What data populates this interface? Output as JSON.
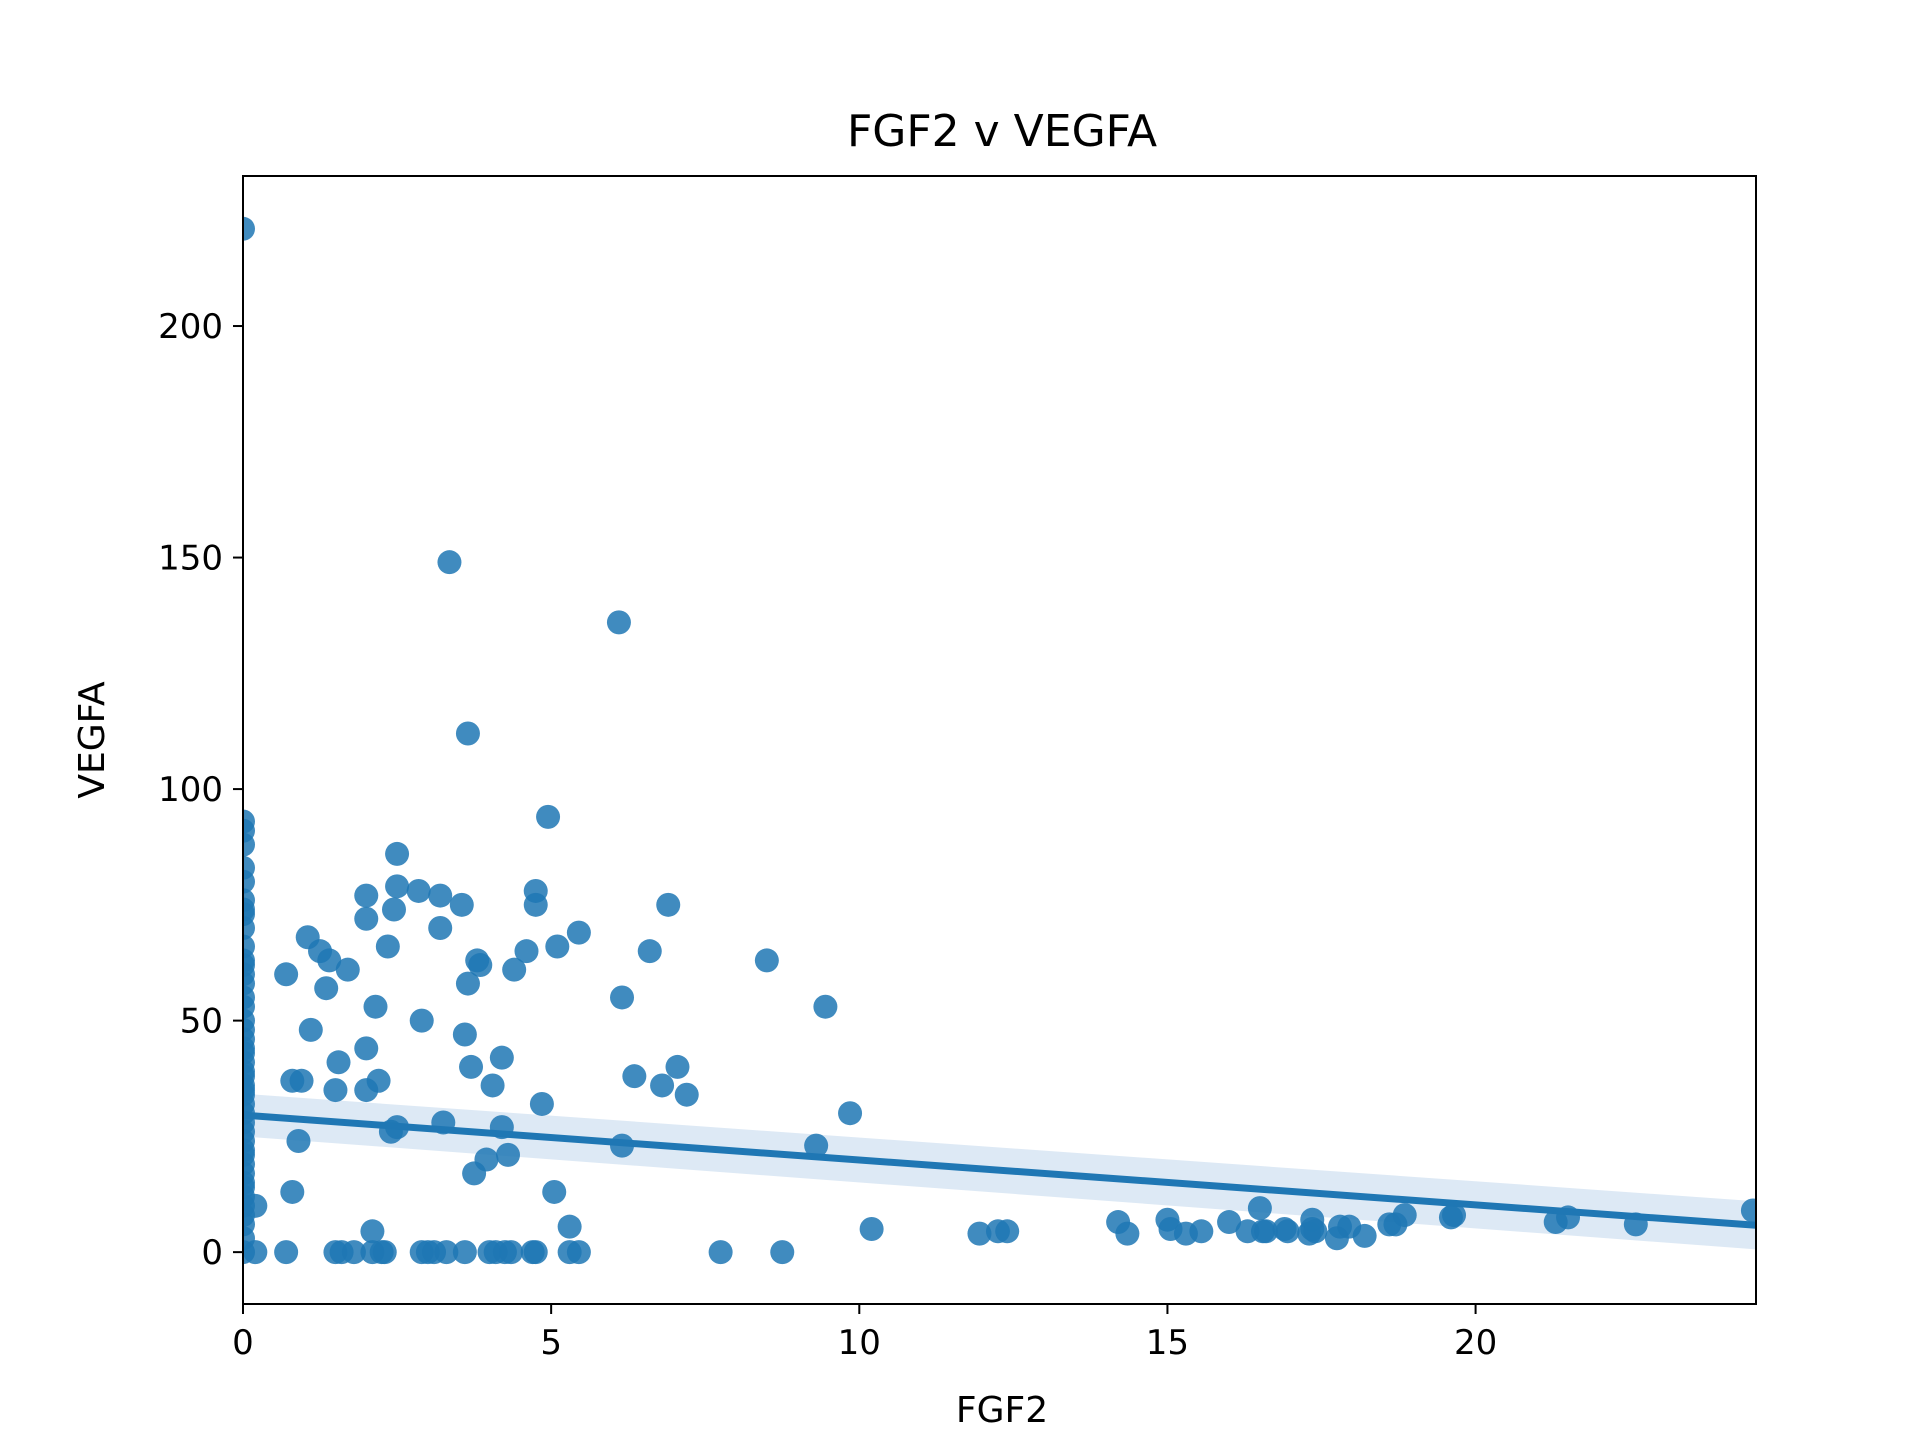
{
  "chart_data": {
    "type": "scatter",
    "title": "FGF2 v VEGFA",
    "xlabel": "FGF2",
    "ylabel": "VEGFA",
    "xlim": [
      0,
      24.55
    ],
    "ylim": [
      -11.2,
      232.4
    ],
    "xticks": [
      0,
      5,
      10,
      15,
      20
    ],
    "yticks": [
      0,
      50,
      100,
      150,
      200
    ],
    "grid": false,
    "legend": "none",
    "colors": {
      "points": "#1f77b4",
      "line": "#1f77b4",
      "band": "#c6dbef"
    },
    "regression": {
      "x": [
        0,
        24.55
      ],
      "y": [
        29.6,
        5.8
      ],
      "ci_halfwidth_start": 4.6,
      "ci_halfwidth_end": 5.2
    },
    "points": {
      "x": [
        0,
        0,
        0,
        0,
        0,
        0,
        0,
        0,
        0,
        0,
        0,
        0,
        0,
        0,
        0,
        0,
        0,
        0,
        0,
        0,
        0,
        0,
        0,
        0,
        0,
        0,
        0,
        0,
        0,
        0,
        0,
        0,
        0,
        0,
        0,
        0,
        0,
        0,
        0,
        0,
        0,
        0,
        0,
        0,
        0,
        0.2,
        0.2,
        0.7,
        0.7,
        0.8,
        0.8,
        0.9,
        0.95,
        1.05,
        1.1,
        1.25,
        1.35,
        1.4,
        1.5,
        1.55,
        1.7,
        1.5,
        1.6,
        1.8,
        2.0,
        2.0,
        2.0,
        2.0,
        2.1,
        2.1,
        2.15,
        2.2,
        2.25,
        2.35,
        2.4,
        2.45,
        2.5,
        2.5,
        2.5,
        2.3,
        2.85,
        2.9,
        2.9,
        3.0,
        3.1,
        3.2,
        3.2,
        3.25,
        3.3,
        3.35,
        3.55,
        3.6,
        3.6,
        3.65,
        3.65,
        3.7,
        3.75,
        3.8,
        3.85,
        3.95,
        4.0,
        4.05,
        4.1,
        4.2,
        4.2,
        4.25,
        4.3,
        4.35,
        4.4,
        4.6,
        4.7,
        4.75,
        4.75,
        4.75,
        4.85,
        4.95,
        5.05,
        5.1,
        5.3,
        5.3,
        5.45,
        5.45,
        6.1,
        6.15,
        6.15,
        6.35,
        6.6,
        6.8,
        6.9,
        7.05,
        7.2,
        7.75,
        8.5,
        8.75,
        9.3,
        9.45,
        9.85,
        10.2,
        11.95,
        12.25,
        12.4,
        14.2,
        14.35,
        15.0,
        15.05,
        15.3,
        15.55,
        16.0,
        16.3,
        16.5,
        16.55,
        16.6,
        16.9,
        16.95,
        17.3,
        17.35,
        17.35,
        17.4,
        17.75,
        17.8,
        17.95,
        18.2,
        18.6,
        18.7,
        18.85,
        19.6,
        19.65,
        21.3,
        21.5,
        22.6,
        24.5
      ],
      "y": [
        221,
        93,
        91,
        83,
        80,
        76,
        74,
        73,
        66,
        62,
        58,
        55,
        53,
        50,
        48,
        46,
        43,
        41,
        38,
        36,
        34,
        32,
        30,
        28,
        26,
        24,
        22,
        19,
        17,
        14,
        12,
        10,
        8,
        6,
        3,
        0,
        88,
        70,
        63,
        60,
        44,
        39,
        35,
        21,
        15,
        10,
        0,
        60,
        0,
        37,
        13,
        24,
        37,
        68,
        48,
        65,
        57,
        63,
        35,
        41,
        61,
        0,
        0,
        0,
        44,
        77,
        72,
        35,
        4.5,
        0,
        53,
        37,
        0,
        66,
        26,
        74,
        86,
        79,
        27,
        0,
        78,
        50,
        0,
        0,
        0,
        77,
        70,
        28,
        0,
        149,
        75,
        47,
        0,
        58,
        112,
        40,
        17,
        63,
        62,
        20,
        0,
        36,
        0,
        27,
        42,
        0,
        21,
        0,
        61,
        65,
        0,
        78,
        75,
        0,
        32,
        94,
        13,
        66,
        5.5,
        0,
        69,
        0,
        136,
        55,
        23,
        38,
        65,
        36,
        75,
        40,
        34,
        0,
        63,
        0,
        23,
        53,
        30,
        5,
        4,
        4.5,
        4.5,
        6.5,
        4,
        7,
        5,
        4,
        4.5,
        6.5,
        4.5,
        9.5,
        4.5,
        4.5,
        5,
        4.5,
        4,
        7,
        5,
        4.5,
        3,
        5.5,
        5.5,
        3.5,
        6,
        6,
        8,
        7.5,
        8,
        6.5,
        7.5,
        6,
        9
      ]
    }
  }
}
